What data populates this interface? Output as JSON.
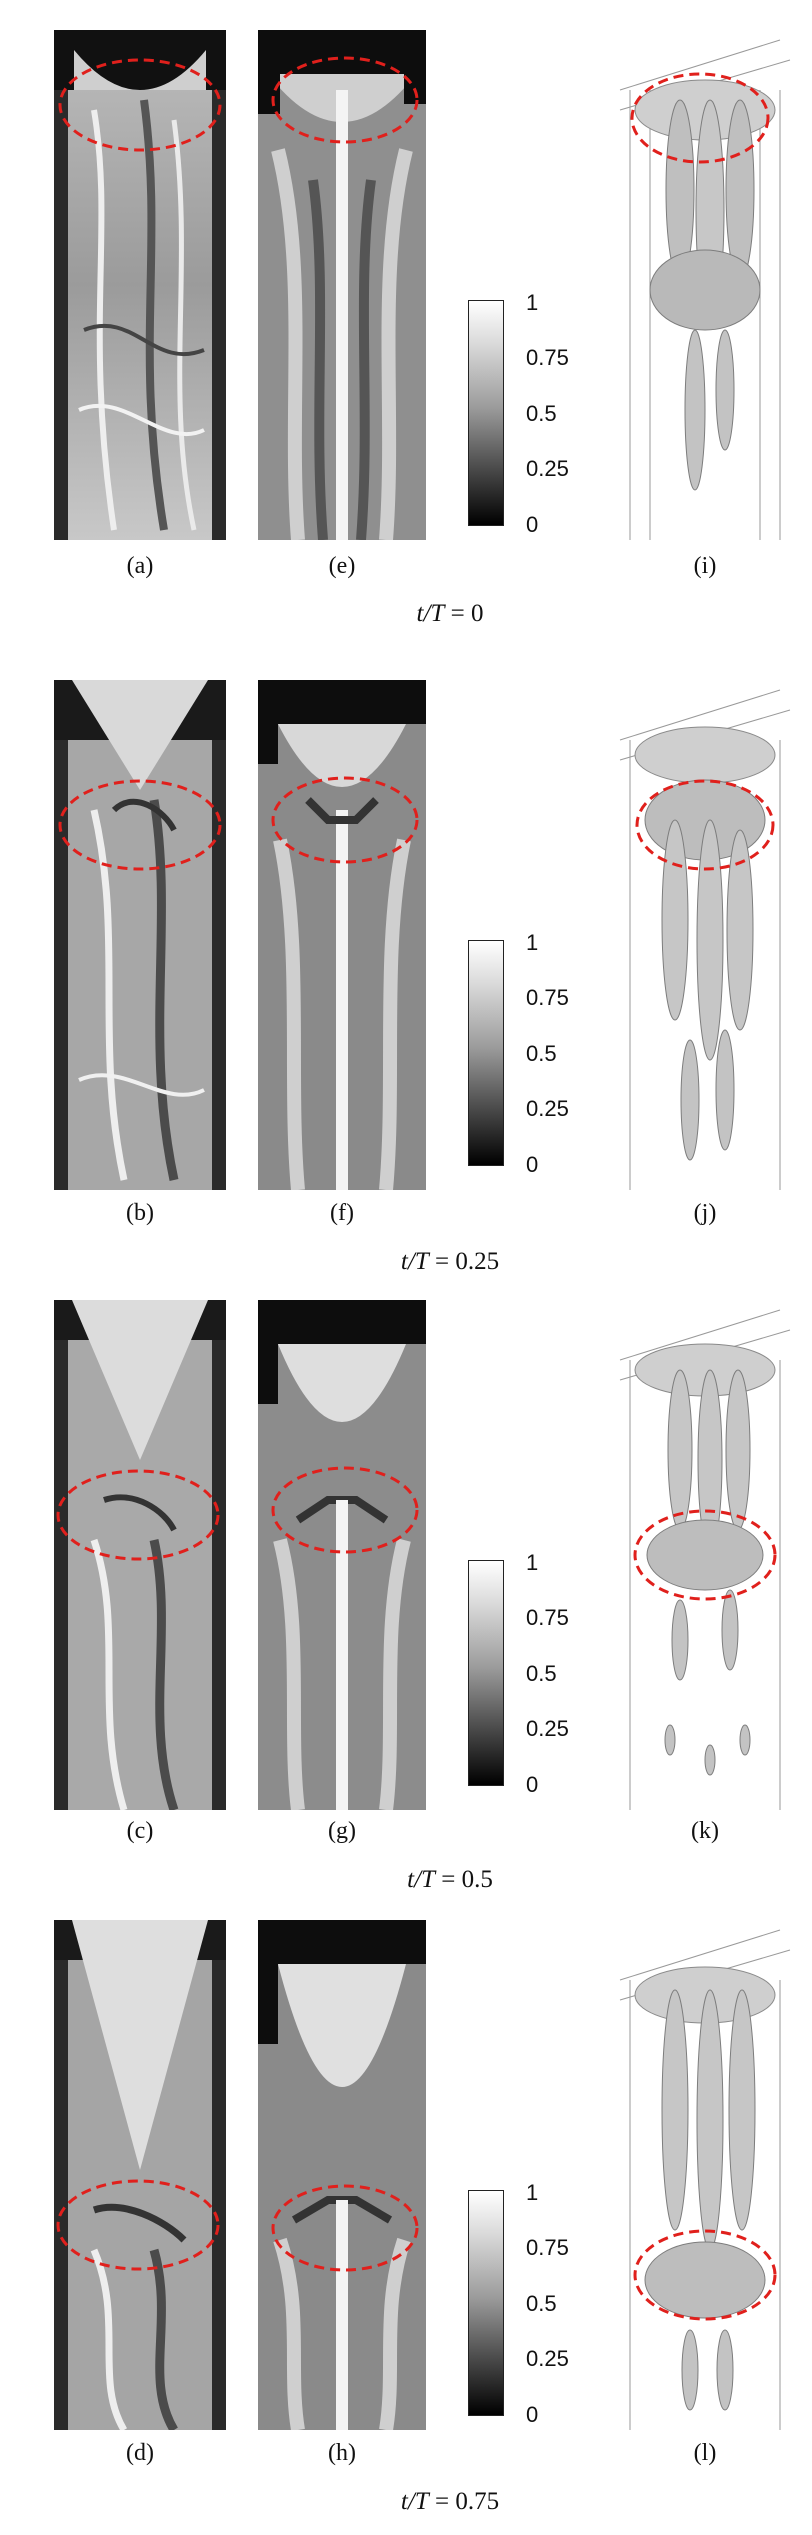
{
  "rows": [
    {
      "time_prefix": "t/T",
      "time_value": "= 0",
      "captions": [
        "(a)",
        "(e)",
        "(i)"
      ]
    },
    {
      "time_prefix": "t/T",
      "time_value": "= 0.25",
      "captions": [
        "(b)",
        "(f)",
        "(j)"
      ]
    },
    {
      "time_prefix": "t/T",
      "time_value": "= 0.5",
      "captions": [
        "(c)",
        "(g)",
        "(k)"
      ]
    },
    {
      "time_prefix": "t/T",
      "time_value": "= 0.75",
      "captions": [
        "(d)",
        "(h)",
        "(l)"
      ]
    }
  ],
  "colorbar": {
    "ticks": [
      "1",
      "0.75",
      "0.5",
      "0.25",
      "0"
    ],
    "top_color": "#ffffff",
    "bottom_color": "#000000"
  },
  "highlight_color": "#e0201c"
}
